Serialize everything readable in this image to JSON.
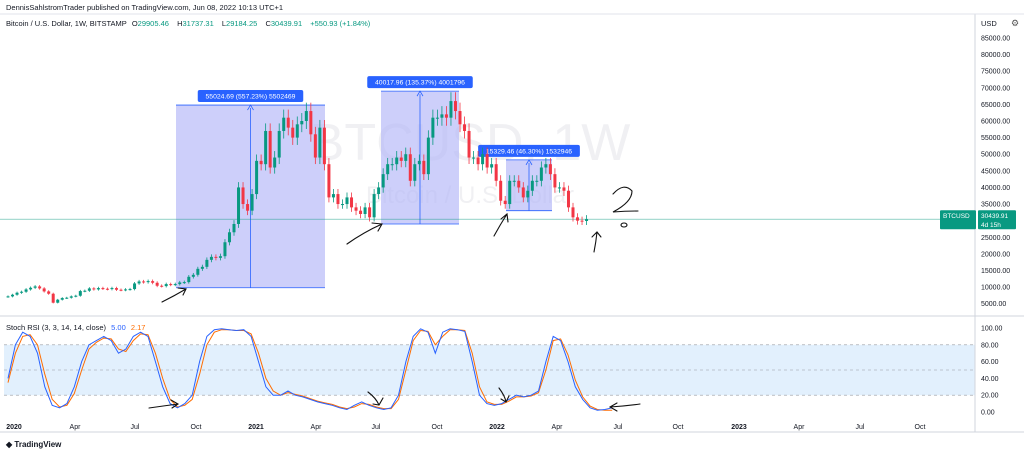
{
  "header": {
    "published": "DennisSahlstromTrader published on TradingView.com, Jun 08, 2022 10:13 UTC+1",
    "symbol_title": "Bitcoin / U.S. Dollar, 1W, BITSTAMP",
    "ohlc": [
      {
        "label": "O",
        "value": "29905.46"
      },
      {
        "label": "H",
        "value": "31737.31"
      },
      {
        "label": "L",
        "value": "29184.25"
      },
      {
        "label": "C",
        "value": "30439.91"
      }
    ],
    "change": "+550.93 (+1.84%)",
    "currency": "USD",
    "settings_icon": "gear-icon"
  },
  "price_tag": {
    "symbol": "BTCUSD",
    "price": "30439.91",
    "countdown": "4d 15h"
  },
  "watermark": {
    "main": "BTCUSD, 1W",
    "sub": "Bitcoin / U.S. Dollar"
  },
  "indicator": {
    "label": "Stoch RSI (3, 3, 14, 14, close)",
    "k": "5.00",
    "d": "2.17"
  },
  "footer": {
    "logo": "TradingView"
  },
  "colors": {
    "up": "#089981",
    "down": "#f23645",
    "range_fill": "#b2b5f7",
    "k_line": "#2962ff",
    "d_line": "#ff6d00",
    "band": "#d6eafc"
  },
  "chart_data": {
    "type": "candlestick",
    "title": "Bitcoin / U.S. Dollar, 1W, BITSTAMP",
    "x_axis_labels": [
      "2020",
      "Apr",
      "Jul",
      "Oct",
      "2021",
      "Apr",
      "Jul",
      "Oct",
      "2022",
      "Apr",
      "Jul",
      "Oct",
      "2023",
      "Apr",
      "Jul",
      "Oct"
    ],
    "y_axis_labels": [
      "85000.00",
      "80000.00",
      "75000.00",
      "70000.00",
      "65000.00",
      "60000.00",
      "55000.00",
      "50000.00",
      "45000.00",
      "40000.00",
      "35000.00",
      "30000.00",
      "25000.00",
      "20000.00",
      "15000.00",
      "10000.00",
      "5000.00"
    ],
    "price_range": [
      2500,
      88000
    ],
    "weekly_closes": [
      7200,
      7700,
      8300,
      8600,
      9300,
      9800,
      10200,
      9600,
      8700,
      8000,
      5300,
      6200,
      6700,
      6800,
      7200,
      7400,
      8800,
      8900,
      9600,
      9300,
      9700,
      9500,
      9400,
      9700,
      9200,
      9100,
      9300,
      9400,
      11100,
      11700,
      11500,
      11800,
      11300,
      10400,
      10300,
      10900,
      10700,
      10900,
      11400,
      11500,
      13100,
      13700,
      15500,
      16100,
      18200,
      19100,
      18800,
      19300,
      23500,
      26500,
      29000,
      40000,
      35000,
      33000,
      38000,
      48000,
      47000,
      57000,
      46000,
      49000,
      57000,
      61000,
      58000,
      55000,
      59000,
      60000,
      63000,
      56000,
      49000,
      58000,
      47000,
      37000,
      38000,
      35000,
      35000,
      37000,
      34000,
      33000,
      32000,
      34000,
      31000,
      38000,
      40000,
      44000,
      47000,
      47000,
      49000,
      48000,
      50000,
      42000,
      47000,
      48000,
      44000,
      55000,
      61000,
      61000,
      62000,
      61000,
      66000,
      63000,
      59000,
      57000,
      49000,
      49000,
      47000,
      50000,
      46000,
      47000,
      42000,
      36000,
      35000,
      42000,
      42000,
      40000,
      37000,
      39000,
      42000,
      42000,
      46000,
      47000,
      44000,
      40000,
      40000,
      39000,
      34000,
      31000,
      30000,
      29900,
      30440
    ],
    "range_measurements": [
      {
        "label": "55024.69 (557.23%) 5502469",
        "from_price": 9800,
        "to_price": 64800
      },
      {
        "label": "40017.96 (135.37%) 4001796",
        "from_price": 29000,
        "to_price": 69000
      },
      {
        "label": "15329.46 (46.30%) 1532946",
        "from_price": 33000,
        "to_price": 48300
      }
    ],
    "horizontal_line": {
      "price": 30440
    },
    "stoch_rsi": {
      "axis_labels": [
        "100.00",
        "80.00",
        "60.00",
        "40.00",
        "20.00",
        "0.00"
      ],
      "bands": [
        20,
        80
      ],
      "midline": 50,
      "k": [
        40,
        80,
        95,
        90,
        70,
        30,
        8,
        5,
        10,
        30,
        60,
        80,
        85,
        90,
        85,
        70,
        75,
        90,
        95,
        90,
        60,
        30,
        10,
        5,
        10,
        20,
        60,
        90,
        98,
        99,
        98,
        97,
        98,
        90,
        60,
        30,
        20,
        20,
        25,
        20,
        18,
        15,
        12,
        10,
        8,
        5,
        3,
        8,
        12,
        8,
        5,
        3,
        5,
        20,
        60,
        90,
        99,
        95,
        70,
        95,
        99,
        98,
        96,
        60,
        20,
        10,
        8,
        10,
        15,
        20,
        18,
        20,
        25,
        60,
        90,
        85,
        60,
        30,
        15,
        5,
        2,
        3,
        5
      ],
      "d": [
        35,
        70,
        90,
        92,
        80,
        45,
        15,
        6,
        8,
        22,
        50,
        75,
        83,
        88,
        87,
        75,
        72,
        85,
        93,
        92,
        70,
        40,
        15,
        6,
        8,
        15,
        45,
        80,
        95,
        98,
        98,
        97,
        97,
        93,
        70,
        40,
        25,
        20,
        23,
        21,
        19,
        16,
        13,
        11,
        9,
        6,
        4,
        6,
        10,
        9,
        6,
        4,
        4,
        15,
        50,
        85,
        97,
        96,
        80,
        90,
        98,
        98,
        97,
        70,
        30,
        12,
        9,
        9,
        13,
        18,
        18,
        19,
        23,
        50,
        85,
        87,
        68,
        38,
        18,
        7,
        3,
        2,
        2
      ]
    }
  }
}
